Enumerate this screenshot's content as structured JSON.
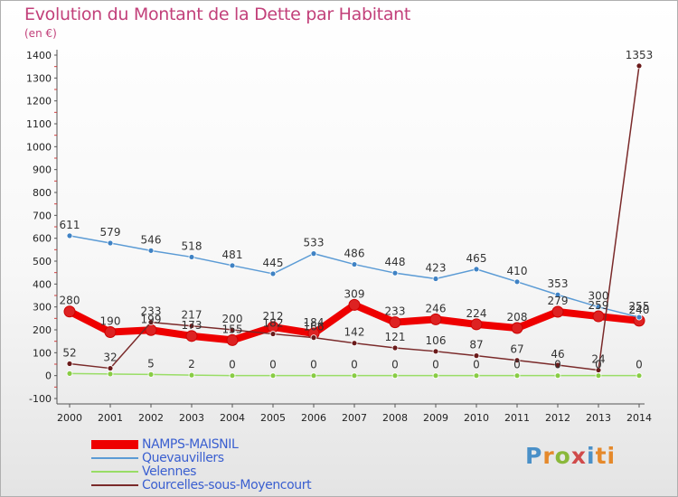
{
  "header": {
    "title": "Evolution du Montant de la Dette par Habitant",
    "subtitle": "(en €)"
  },
  "brand": {
    "letters": [
      "P",
      "r",
      "o",
      "x",
      "i",
      "ti"
    ]
  },
  "chart_data": {
    "type": "line",
    "x": [
      "2000",
      "2001",
      "2002",
      "2003",
      "2004",
      "2005",
      "2006",
      "2007",
      "2008",
      "2009",
      "2010",
      "2011",
      "2012",
      "2013",
      "2014"
    ],
    "ylim": [
      -100,
      1400
    ],
    "yticks": [
      -100,
      0,
      100,
      200,
      300,
      400,
      500,
      600,
      700,
      800,
      900,
      1000,
      1100,
      1200,
      1300,
      1400
    ],
    "grid": false,
    "legend_position": "bottom-left",
    "series": [
      {
        "name": "NAMPS-MAISNIL",
        "color": "#ee0000",
        "marker_color": "#dd2222",
        "values": [
          280,
          190,
          199,
          173,
          155,
          212,
          184,
          309,
          233,
          246,
          224,
          208,
          279,
          259,
          240
        ],
        "labels": [
          "280",
          "190",
          "199",
          "173",
          "155",
          "212",
          "184",
          "309",
          "233",
          "246",
          "224",
          "208",
          "279",
          "259",
          "240"
        ]
      },
      {
        "name": "Quevauvillers",
        "color": "#5b9bd5",
        "marker_color": "#3f82c4",
        "values": [
          611,
          579,
          546,
          518,
          481,
          445,
          533,
          486,
          448,
          423,
          465,
          410,
          353,
          300,
          255
        ],
        "labels": [
          "611",
          "579",
          "546",
          "518",
          "481",
          "445",
          "533",
          "486",
          "448",
          "423",
          "465",
          "410",
          "353",
          "300",
          "255"
        ]
      },
      {
        "name": "Velennes",
        "color": "#99dd66",
        "marker_color": "#88cc44",
        "values": [
          9,
          7,
          5,
          2,
          0,
          0,
          0,
          0,
          0,
          0,
          0,
          0,
          0,
          0,
          0
        ],
        "labels": [
          "",
          "",
          "5",
          "2",
          "0",
          "0",
          "0",
          "0",
          "0",
          "0",
          "0",
          "0",
          "0",
          "0",
          "0"
        ]
      },
      {
        "name": "Courcelles-sous-Moyencourt",
        "color": "#7a2a2a",
        "marker_color": "#6a1a1a",
        "values": [
          52,
          32,
          233,
          217,
          200,
          182,
          166,
          142,
          121,
          106,
          87,
          67,
          46,
          24,
          1353
        ],
        "labels": [
          "52",
          "32",
          "233",
          "217",
          "200",
          "182",
          "166",
          "142",
          "121",
          "106",
          "87",
          "67",
          "46",
          "24",
          "1353"
        ]
      }
    ]
  }
}
